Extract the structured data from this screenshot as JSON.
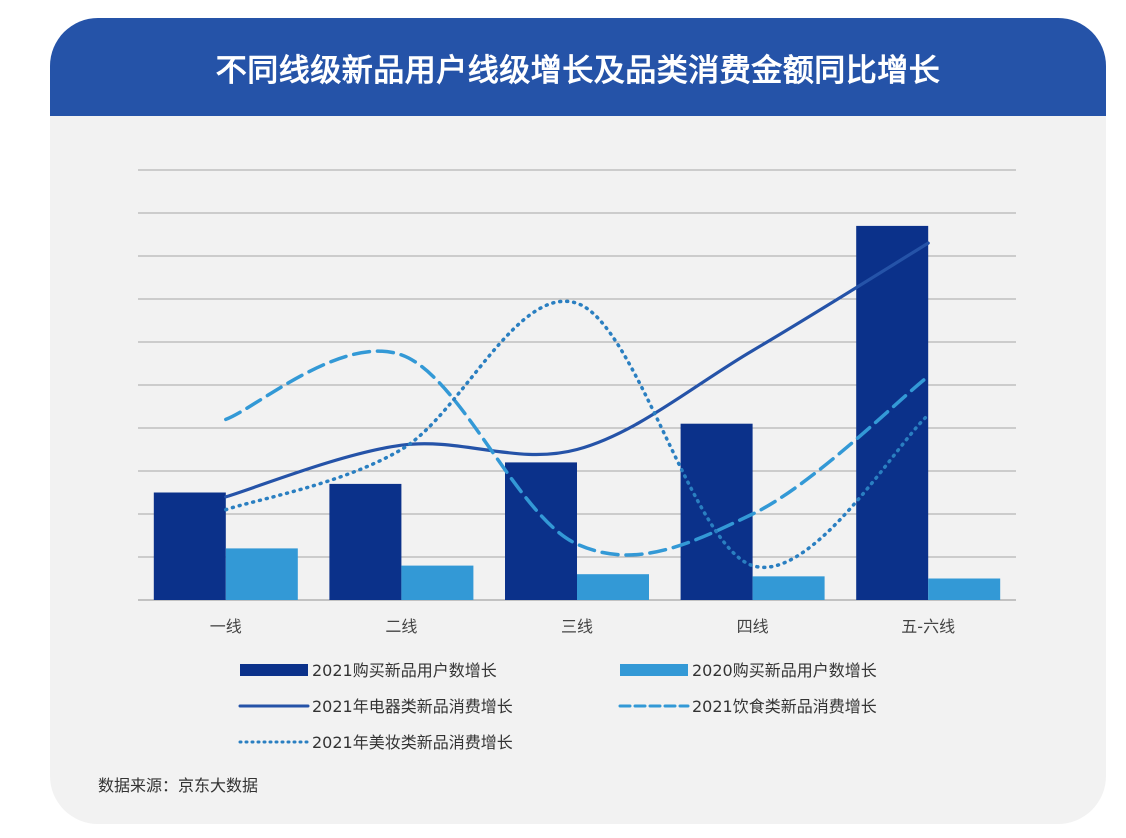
{
  "title": "不同线级新品用户线级增长及品类消费金额同比增长",
  "source": "数据来源：京东大数据",
  "colors": {
    "header": "#2553a8",
    "bar2021": "#0b318a",
    "bar2020": "#3399d6",
    "appliance": "#2553a8",
    "food": "#3399d6",
    "beauty": "#2a7fc1",
    "grid": "#a6a6a6"
  },
  "chart_data": {
    "type": "bar+line",
    "categories": [
      "一线",
      "二线",
      "三线",
      "四线",
      "五-六线"
    ],
    "ylim": [
      0,
      10
    ],
    "grid": true,
    "legend_position": "bottom",
    "series": [
      {
        "name": "2021购买新品用户数增长",
        "kind": "bar",
        "values": [
          2.5,
          2.7,
          3.2,
          4.1,
          8.7
        ]
      },
      {
        "name": "2020购买新品用户数增长",
        "kind": "bar",
        "values": [
          1.2,
          0.8,
          0.6,
          0.55,
          0.5
        ]
      },
      {
        "name": "2021年电器类新品消费增长",
        "kind": "line",
        "style": "solid",
        "values": [
          2.4,
          3.6,
          3.5,
          5.8,
          8.3
        ]
      },
      {
        "name": "2021饮食类新品消费增长",
        "kind": "line",
        "style": "dashed",
        "values": [
          4.2,
          5.7,
          1.3,
          2.0,
          5.2
        ]
      },
      {
        "name": "2021年美妆类新品消费增长",
        "kind": "line",
        "style": "dotted",
        "values": [
          2.1,
          3.5,
          6.9,
          0.8,
          4.3
        ]
      }
    ]
  }
}
